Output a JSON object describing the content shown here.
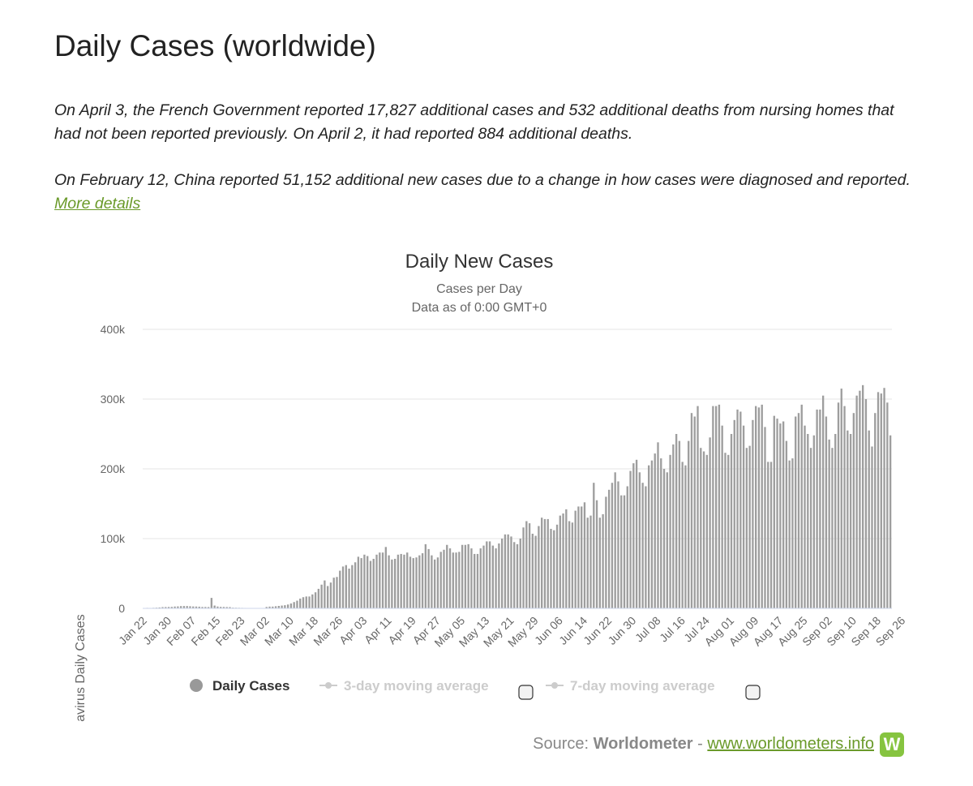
{
  "page": {
    "title": "Daily Cases (worldwide)",
    "note1": "On April 3, the French Government reported 17,827 additional cases and 532 additional deaths from nursing homes that had not been reported previously. On April 2, it had reported 884 additional deaths.",
    "note2_text": "On February 12, China reported 51,152 additional new cases due to a change in how cases were diagnosed and reported. ",
    "note2_link": "More details",
    "link_color": "#6a9a2a"
  },
  "chart_data": {
    "type": "bar",
    "title": "Daily New Cases",
    "subtitle_1": "Cases per Day",
    "subtitle_2": "Data as of 0:00 GMT+0",
    "ylabel": "Novel Coronavirus Daily Cases",
    "ylim": [
      0,
      400000
    ],
    "yticks": [
      "0",
      "100k",
      "200k",
      "300k",
      "400k"
    ],
    "ytick_values": [
      0,
      100000,
      200000,
      300000,
      400000
    ],
    "xticks": [
      "Jan 22",
      "Jan 30",
      "Feb 07",
      "Feb 15",
      "Feb 23",
      "Mar 02",
      "Mar 10",
      "Mar 18",
      "Mar 26",
      "Apr 03",
      "Apr 11",
      "Apr 19",
      "Apr 27",
      "May 05",
      "May 13",
      "May 21",
      "May 29",
      "Jun 06",
      "Jun 14",
      "Jun 22",
      "Jun 30",
      "Jul 08",
      "Jul 16",
      "Jul 24",
      "Aug 01",
      "Aug 09",
      "Aug 17",
      "Aug 25",
      "Sep 02",
      "Sep 10",
      "Sep 18",
      "Sep 26"
    ],
    "grid": true,
    "bar_color": "#9e9e9e",
    "legend": [
      {
        "label": "Daily Cases",
        "active": true,
        "color": "#999999"
      },
      {
        "label": "3-day moving average",
        "active": false,
        "color": "#cccccc"
      },
      {
        "label": "7-day moving average",
        "active": false,
        "color": "#cccccc"
      }
    ],
    "series": [
      {
        "name": "Daily Cases",
        "start_date": "Jan 22",
        "values": [
          550,
          700,
          600,
          800,
          1000,
          1300,
          1800,
          1900,
          2000,
          2100,
          2600,
          2800,
          3200,
          3300,
          3300,
          3000,
          2700,
          2600,
          2400,
          2000,
          2000,
          1900,
          15000,
          4000,
          2600,
          2100,
          2000,
          1900,
          1800,
          1000,
          900,
          800,
          700,
          600,
          500,
          400,
          300,
          250,
          200,
          200,
          2000,
          2500,
          2500,
          3000,
          3500,
          4000,
          4500,
          5500,
          7000,
          9000,
          11000,
          14000,
          16000,
          17000,
          17000,
          20000,
          23000,
          28000,
          34000,
          40000,
          32000,
          37000,
          44000,
          45000,
          54000,
          60000,
          62000,
          57000,
          62000,
          66000,
          74000,
          72000,
          77000,
          75000,
          68000,
          71000,
          77000,
          80000,
          80000,
          88000,
          76000,
          70000,
          71000,
          77000,
          78000,
          77000,
          80000,
          74000,
          72000,
          73000,
          76000,
          79000,
          92000,
          85000,
          76000,
          70000,
          73000,
          81000,
          84000,
          91000,
          86000,
          80000,
          80000,
          81000,
          91000,
          91000,
          92000,
          86000,
          78000,
          78000,
          86000,
          90000,
          96000,
          96000,
          90000,
          86000,
          93000,
          100000,
          106000,
          106000,
          103000,
          95000,
          92000,
          100000,
          116000,
          125000,
          122000,
          107000,
          104000,
          118000,
          130000,
          128000,
          128000,
          114000,
          112000,
          120000,
          133000,
          136000,
          142000,
          125000,
          123000,
          140000,
          146000,
          146000,
          152000,
          130000,
          133000,
          180000,
          155000,
          130000,
          135000,
          160000,
          170000,
          180000,
          195000,
          182000,
          162000,
          162000,
          175000,
          197000,
          208000,
          213000,
          195000,
          180000,
          175000,
          205000,
          212000,
          222000,
          238000,
          215000,
          200000,
          195000,
          220000,
          235000,
          250000,
          240000,
          210000,
          205000,
          240000,
          280000,
          275000,
          290000,
          230000,
          225000,
          220000,
          245000,
          290000,
          290000,
          292000,
          262000,
          223000,
          220000,
          250000,
          270000,
          285000,
          282000,
          262000,
          230000,
          233000,
          270000,
          290000,
          288000,
          292000,
          260000,
          210000,
          210000,
          276000,
          272000,
          265000,
          268000,
          240000,
          212000,
          215000,
          275000,
          280000,
          292000,
          262000,
          250000,
          230000,
          248000,
          285000,
          285000,
          305000,
          275000,
          242000,
          230000,
          250000,
          295000,
          315000,
          290000,
          255000,
          250000,
          280000,
          305000,
          312000,
          320000,
          300000,
          255000,
          232000,
          280000,
          310000,
          308000,
          316000,
          295000,
          248000
        ]
      }
    ]
  },
  "footer": {
    "source_label": "Source: ",
    "source_name": "Worldometer",
    "separator": " - ",
    "source_url": "www.worldometers.info",
    "logo_letter": "W",
    "logo_color": "#86c440"
  }
}
